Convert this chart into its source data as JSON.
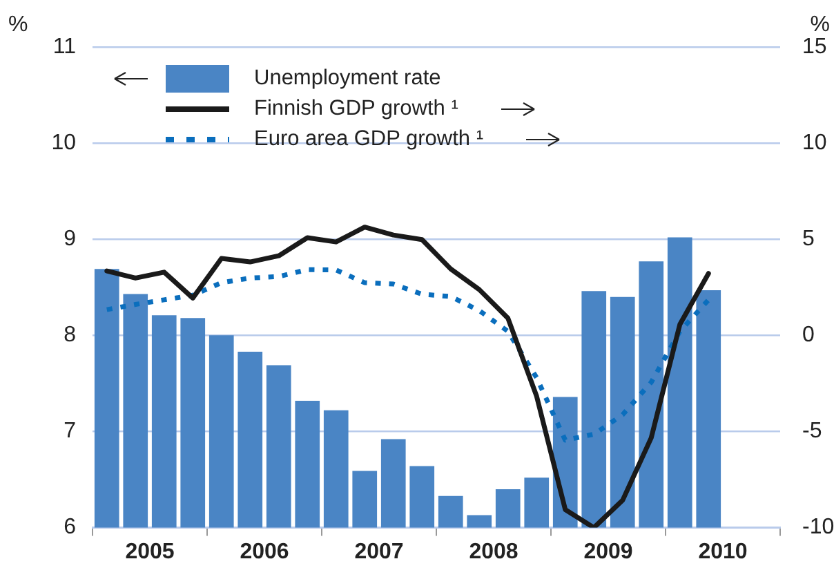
{
  "chart_data": {
    "type": "bar",
    "ylabel": "%",
    "y2label": "%",
    "x": [
      2005.125,
      2005.375,
      2005.625,
      2005.875,
      2006.125,
      2006.375,
      2006.625,
      2006.875,
      2007.125,
      2007.375,
      2007.625,
      2007.875,
      2008.125,
      2008.375,
      2008.625,
      2008.875,
      2009.125,
      2009.375,
      2009.625,
      2009.875,
      2010.125,
      2010.375
    ],
    "series": [
      {
        "name": "Unemployment rate",
        "color": "#4a85c5",
        "values": [
          8.69,
          8.43,
          8.21,
          8.18,
          8.0,
          7.83,
          7.69,
          7.32,
          7.22,
          6.59,
          6.92,
          6.64,
          6.33,
          6.13,
          6.4,
          6.52,
          7.36,
          8.46,
          8.4,
          8.77,
          9.02,
          8.47
        ]
      },
      {
        "name": "Finnish GDP growth ¹",
        "type": "line",
        "axis": "y2",
        "color": "#1a1a1a",
        "line_style": "solid",
        "values": [
          3.35,
          2.98,
          3.29,
          1.94,
          4.0,
          3.82,
          4.14,
          5.08,
          4.86,
          5.63,
          5.22,
          4.98,
          3.46,
          2.38,
          0.89,
          -3.16,
          -9.06,
          -10.0,
          -8.58,
          -5.33,
          0.57,
          3.22
        ]
      },
      {
        "name": "Euro area GDP growth ¹",
        "type": "line",
        "axis": "y2",
        "color": "#0a6ebd",
        "line_style": "dotted",
        "values": [
          1.34,
          1.61,
          1.85,
          2.09,
          2.74,
          2.98,
          3.06,
          3.42,
          3.4,
          2.74,
          2.67,
          2.14,
          2.02,
          1.29,
          0.21,
          -2.2,
          -5.45,
          -5.14,
          -4.13,
          -2.44,
          0.21,
          1.85
        ]
      }
    ],
    "xlim": [
      2005,
      2011
    ],
    "xticks": [
      {
        "value": 2005,
        "label": null
      },
      {
        "value": 2005.5,
        "label": "2005"
      },
      {
        "value": 2006,
        "label": null
      },
      {
        "value": 2006.5,
        "label": "2006"
      },
      {
        "value": 2007,
        "label": null
      },
      {
        "value": 2007.5,
        "label": "2007"
      },
      {
        "value": 2008,
        "label": null
      },
      {
        "value": 2008.5,
        "label": "2008"
      },
      {
        "value": 2009,
        "label": null
      },
      {
        "value": 2009.5,
        "label": "2009"
      },
      {
        "value": 2010,
        "label": null
      },
      {
        "value": 2010.5,
        "label": "2010"
      },
      {
        "value": 2011,
        "label": null
      }
    ],
    "ylim": [
      6,
      11
    ],
    "yticks": [
      6,
      7,
      8,
      9,
      10,
      11
    ],
    "y2lim": [
      -10,
      15
    ],
    "y2ticks": [
      -10,
      -5,
      0,
      5,
      10,
      15
    ],
    "grid": "y",
    "legend": "top left",
    "marker": "none"
  }
}
